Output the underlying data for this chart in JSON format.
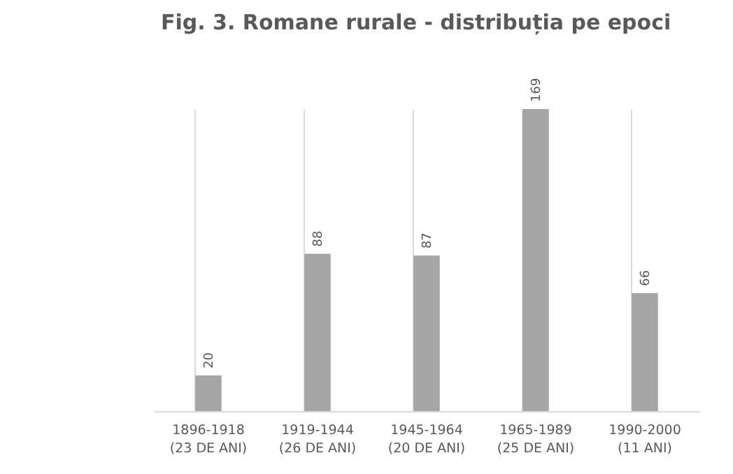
{
  "chart_data": {
    "type": "bar",
    "title": "Fig. 3. Romane rurale - distribuția pe epoci",
    "categories": [
      "1896-1918\n(23 DE ANI)",
      "1919-1944\n(26 DE ANI)",
      "1945-1964\n(20 DE ANI)",
      "1965-1989\n(25 DE ANI)",
      "1990-2000\n(11 ANI)"
    ],
    "values": [
      20,
      88,
      87,
      169,
      66
    ],
    "color": "#a5a5a5",
    "data_labels": true,
    "grid": "x",
    "tick_labels": "x"
  }
}
